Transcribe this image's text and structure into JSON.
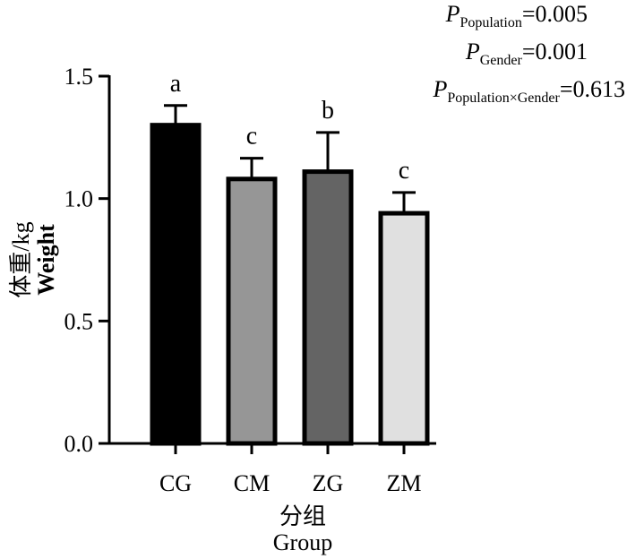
{
  "chart_data": {
    "type": "bar",
    "categories": [
      "CG",
      "CM",
      "ZG",
      "ZM"
    ],
    "values": [
      1.3,
      1.08,
      1.11,
      0.94
    ],
    "errors": [
      0.08,
      0.085,
      0.16,
      0.085
    ],
    "significance": [
      "a",
      "c",
      "b",
      "c"
    ],
    "colors": [
      "#000000",
      "#969696",
      "#646464",
      "#e0e0e0"
    ],
    "ylim": [
      0,
      1.5
    ],
    "yticks": [
      0.0,
      0.5,
      1.0,
      1.5
    ],
    "ytick_labels": [
      "0.0",
      "0.5",
      "1.0",
      "1.5"
    ],
    "xlabel_cn": "分组",
    "xlabel": "Group",
    "ylabel_cn": "体重/kg",
    "ylabel": "Weight",
    "stats": [
      {
        "symbol": "P",
        "subscript": "Population",
        "value": "=0.005"
      },
      {
        "symbol": "P",
        "subscript": "Gender",
        "value": "=0.001"
      },
      {
        "symbol": "P",
        "subscript": "Population×Gender",
        "value": "=0.613"
      }
    ]
  }
}
